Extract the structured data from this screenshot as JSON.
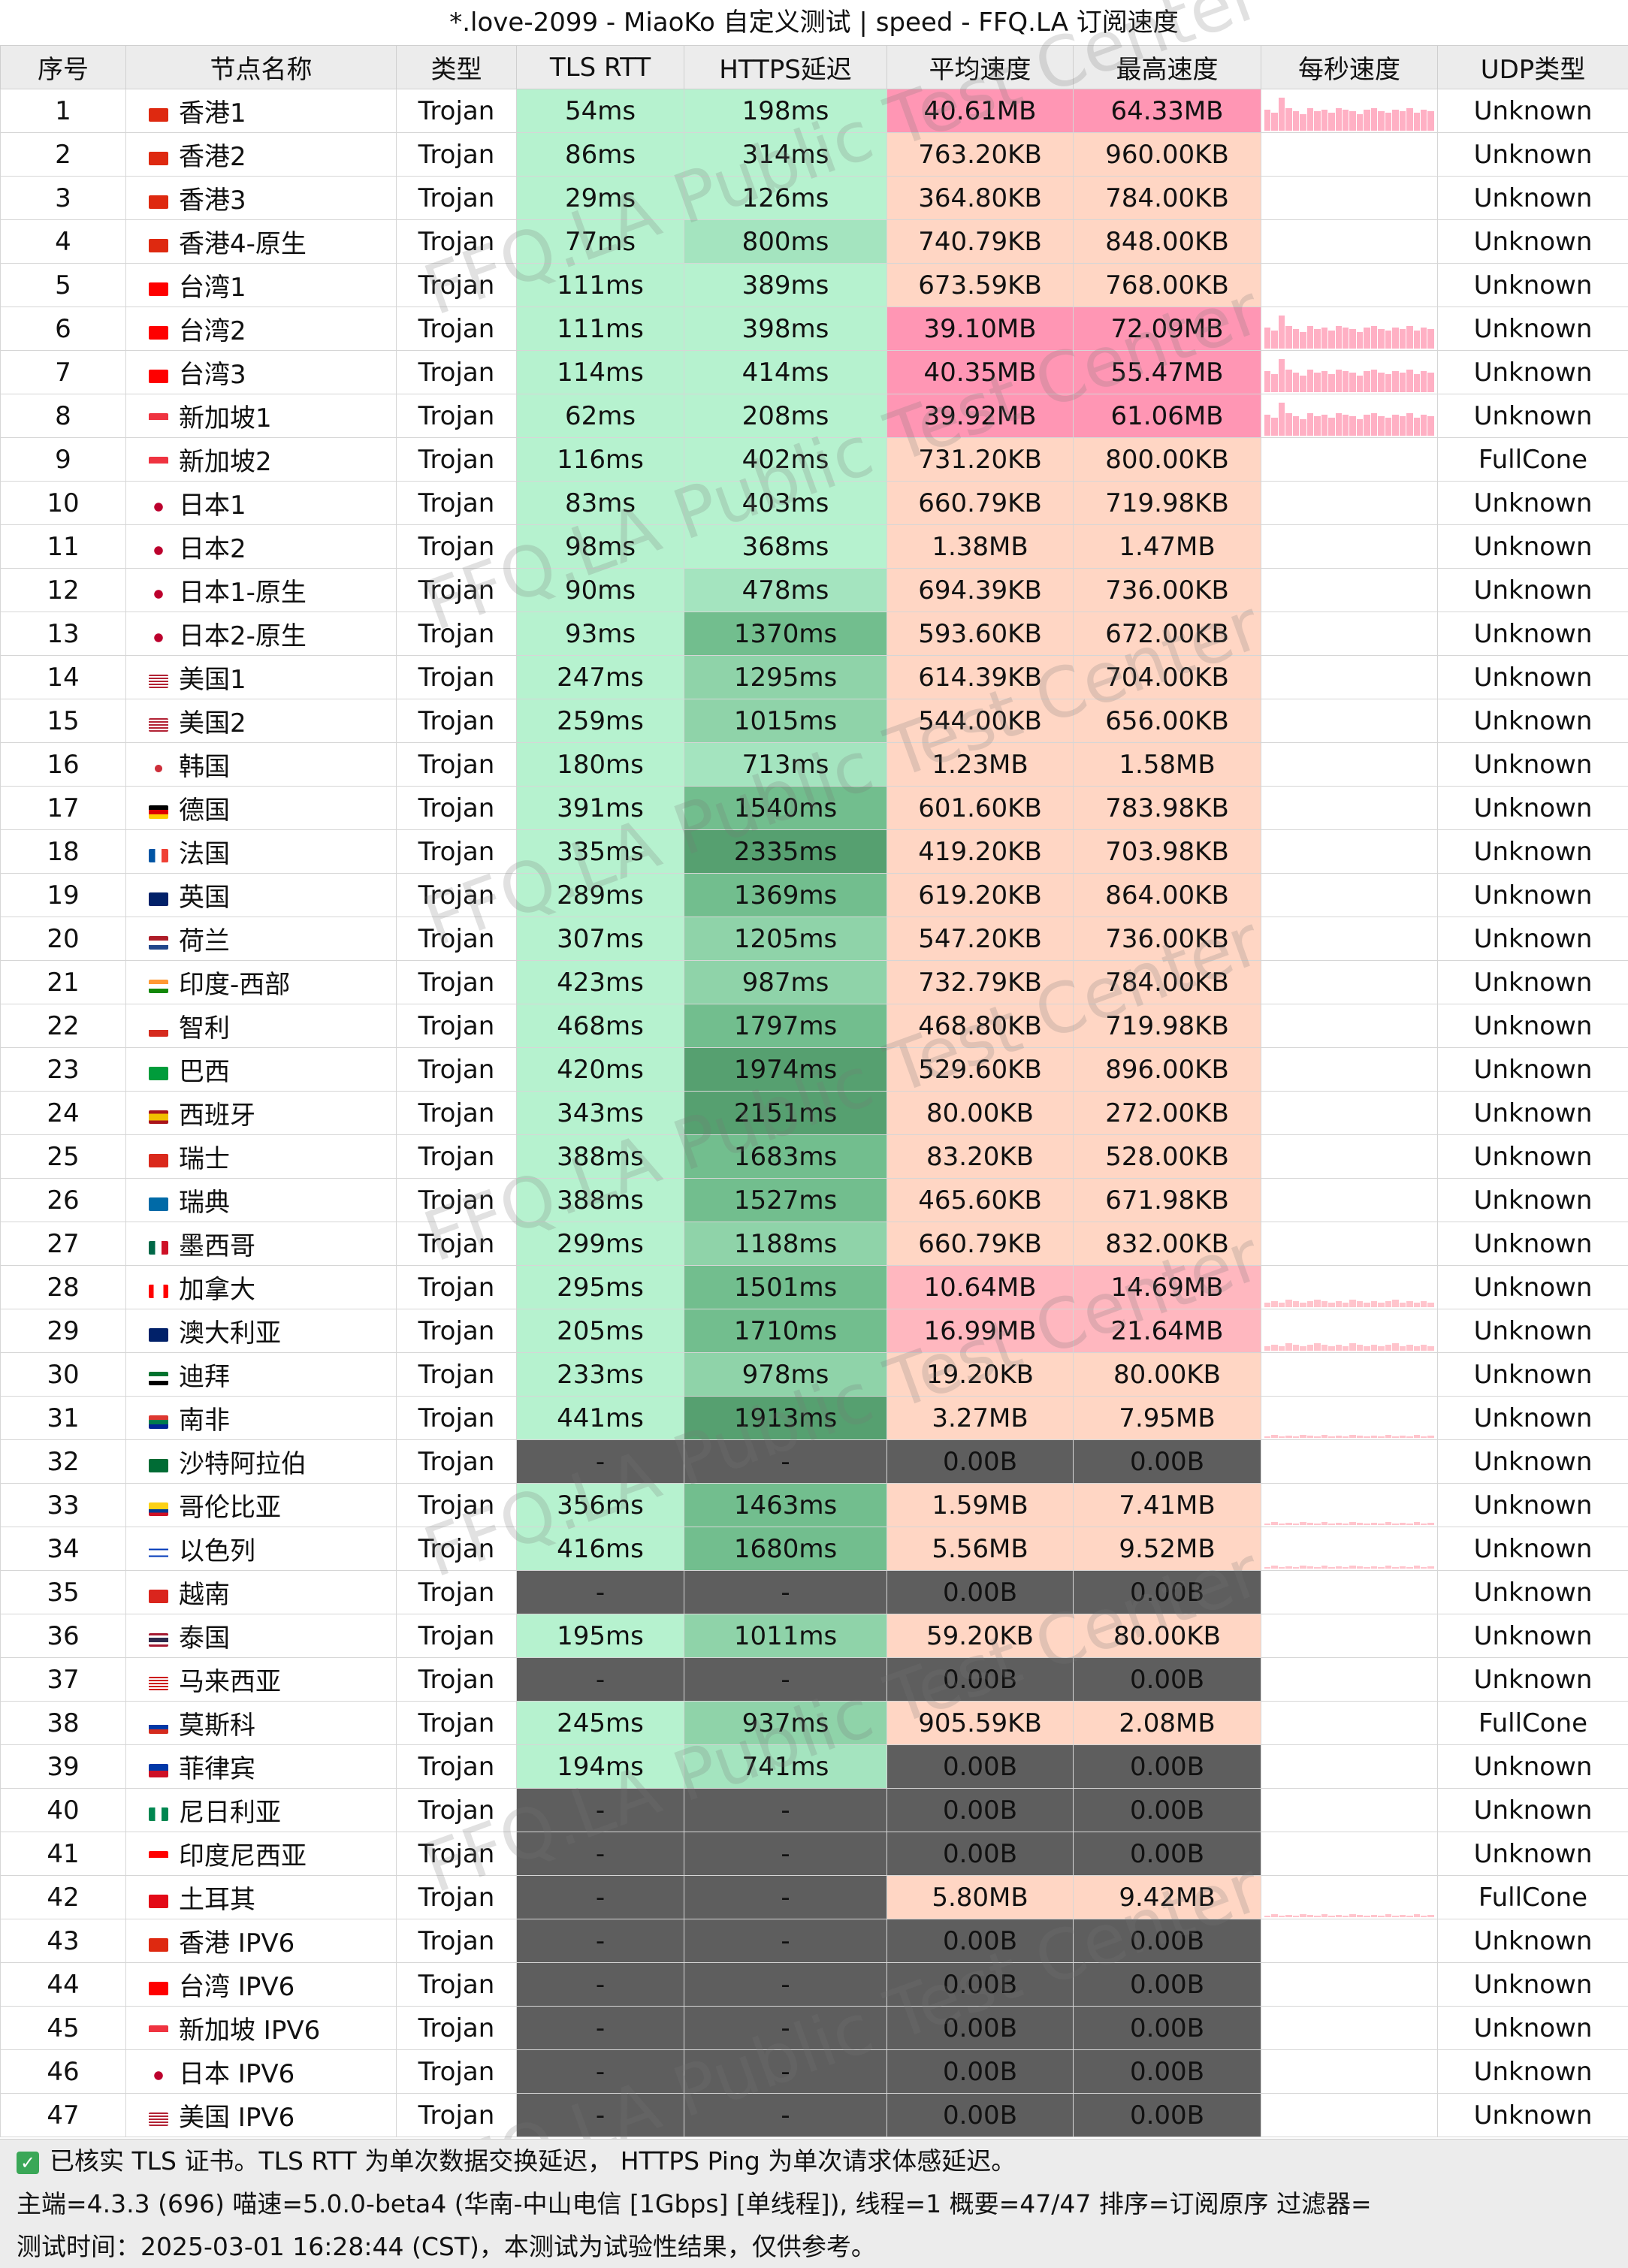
{
  "window": {
    "title": "*.love-2099 - MiaoKo 自定义测试 | speed - FFQ.LA 订阅速度"
  },
  "table": {
    "headers": [
      "序号",
      "节点名称",
      "类型",
      "TLS RTT",
      "HTTPS延迟",
      "平均速度",
      "最高速度",
      "每秒速度",
      "UDP类型"
    ],
    "rows": [
      {
        "idx": "1",
        "name": "香港1",
        "flag": "hk",
        "type": "Trojan",
        "tls": "54ms",
        "https": "198ms",
        "avg": "40.61MB",
        "max": "64.33MB",
        "udp": "Unknown",
        "spark": "high"
      },
      {
        "idx": "2",
        "name": "香港2",
        "flag": "hk",
        "type": "Trojan",
        "tls": "86ms",
        "https": "314ms",
        "avg": "763.20KB",
        "max": "960.00KB",
        "udp": "Unknown",
        "spark": "none"
      },
      {
        "idx": "3",
        "name": "香港3",
        "flag": "hk",
        "type": "Trojan",
        "tls": "29ms",
        "https": "126ms",
        "avg": "364.80KB",
        "max": "784.00KB",
        "udp": "Unknown",
        "spark": "none"
      },
      {
        "idx": "4",
        "name": "香港4-原生",
        "flag": "hk",
        "type": "Trojan",
        "tls": "77ms",
        "https": "800ms",
        "avg": "740.79KB",
        "max": "848.00KB",
        "udp": "Unknown",
        "spark": "none"
      },
      {
        "idx": "5",
        "name": "台湾1",
        "flag": "tw",
        "type": "Trojan",
        "tls": "111ms",
        "https": "389ms",
        "avg": "673.59KB",
        "max": "768.00KB",
        "udp": "Unknown",
        "spark": "none"
      },
      {
        "idx": "6",
        "name": "台湾2",
        "flag": "tw",
        "type": "Trojan",
        "tls": "111ms",
        "https": "398ms",
        "avg": "39.10MB",
        "max": "72.09MB",
        "udp": "Unknown",
        "spark": "high"
      },
      {
        "idx": "7",
        "name": "台湾3",
        "flag": "tw",
        "type": "Trojan",
        "tls": "114ms",
        "https": "414ms",
        "avg": "40.35MB",
        "max": "55.47MB",
        "udp": "Unknown",
        "spark": "high"
      },
      {
        "idx": "8",
        "name": "新加坡1",
        "flag": "sg",
        "type": "Trojan",
        "tls": "62ms",
        "https": "208ms",
        "avg": "39.92MB",
        "max": "61.06MB",
        "udp": "Unknown",
        "spark": "high"
      },
      {
        "idx": "9",
        "name": "新加坡2",
        "flag": "sg",
        "type": "Trojan",
        "tls": "116ms",
        "https": "402ms",
        "avg": "731.20KB",
        "max": "800.00KB",
        "udp": "FullCone",
        "spark": "none"
      },
      {
        "idx": "10",
        "name": "日本1",
        "flag": "jp",
        "type": "Trojan",
        "tls": "83ms",
        "https": "403ms",
        "avg": "660.79KB",
        "max": "719.98KB",
        "udp": "Unknown",
        "spark": "none"
      },
      {
        "idx": "11",
        "name": "日本2",
        "flag": "jp",
        "type": "Trojan",
        "tls": "98ms",
        "https": "368ms",
        "avg": "1.38MB",
        "max": "1.47MB",
        "udp": "Unknown",
        "spark": "none"
      },
      {
        "idx": "12",
        "name": "日本1-原生",
        "flag": "jp",
        "type": "Trojan",
        "tls": "90ms",
        "https": "478ms",
        "avg": "694.39KB",
        "max": "736.00KB",
        "udp": "Unknown",
        "spark": "none"
      },
      {
        "idx": "13",
        "name": "日本2-原生",
        "flag": "jp",
        "type": "Trojan",
        "tls": "93ms",
        "https": "1370ms",
        "avg": "593.60KB",
        "max": "672.00KB",
        "udp": "Unknown",
        "spark": "none"
      },
      {
        "idx": "14",
        "name": "美国1",
        "flag": "us",
        "type": "Trojan",
        "tls": "247ms",
        "https": "1295ms",
        "avg": "614.39KB",
        "max": "704.00KB",
        "udp": "Unknown",
        "spark": "none"
      },
      {
        "idx": "15",
        "name": "美国2",
        "flag": "us",
        "type": "Trojan",
        "tls": "259ms",
        "https": "1015ms",
        "avg": "544.00KB",
        "max": "656.00KB",
        "udp": "Unknown",
        "spark": "none"
      },
      {
        "idx": "16",
        "name": "韩国",
        "flag": "kr",
        "type": "Trojan",
        "tls": "180ms",
        "https": "713ms",
        "avg": "1.23MB",
        "max": "1.58MB",
        "udp": "Unknown",
        "spark": "none"
      },
      {
        "idx": "17",
        "name": "德国",
        "flag": "de",
        "type": "Trojan",
        "tls": "391ms",
        "https": "1540ms",
        "avg": "601.60KB",
        "max": "783.98KB",
        "udp": "Unknown",
        "spark": "none"
      },
      {
        "idx": "18",
        "name": "法国",
        "flag": "fr",
        "type": "Trojan",
        "tls": "335ms",
        "https": "2335ms",
        "avg": "419.20KB",
        "max": "703.98KB",
        "udp": "Unknown",
        "spark": "none"
      },
      {
        "idx": "19",
        "name": "英国",
        "flag": "gb",
        "type": "Trojan",
        "tls": "289ms",
        "https": "1369ms",
        "avg": "619.20KB",
        "max": "864.00KB",
        "udp": "Unknown",
        "spark": "none"
      },
      {
        "idx": "20",
        "name": "荷兰",
        "flag": "nl",
        "type": "Trojan",
        "tls": "307ms",
        "https": "1205ms",
        "avg": "547.20KB",
        "max": "736.00KB",
        "udp": "Unknown",
        "spark": "none"
      },
      {
        "idx": "21",
        "name": "印度-西部",
        "flag": "in",
        "type": "Trojan",
        "tls": "423ms",
        "https": "987ms",
        "avg": "732.79KB",
        "max": "784.00KB",
        "udp": "Unknown",
        "spark": "none"
      },
      {
        "idx": "22",
        "name": "智利",
        "flag": "cl",
        "type": "Trojan",
        "tls": "468ms",
        "https": "1797ms",
        "avg": "468.80KB",
        "max": "719.98KB",
        "udp": "Unknown",
        "spark": "none"
      },
      {
        "idx": "23",
        "name": "巴西",
        "flag": "br",
        "type": "Trojan",
        "tls": "420ms",
        "https": "1974ms",
        "avg": "529.60KB",
        "max": "896.00KB",
        "udp": "Unknown",
        "spark": "none"
      },
      {
        "idx": "24",
        "name": "西班牙",
        "flag": "es",
        "type": "Trojan",
        "tls": "343ms",
        "https": "2151ms",
        "avg": "80.00KB",
        "max": "272.00KB",
        "udp": "Unknown",
        "spark": "none"
      },
      {
        "idx": "25",
        "name": "瑞士",
        "flag": "ch",
        "type": "Trojan",
        "tls": "388ms",
        "https": "1683ms",
        "avg": "83.20KB",
        "max": "528.00KB",
        "udp": "Unknown",
        "spark": "none"
      },
      {
        "idx": "26",
        "name": "瑞典",
        "flag": "se",
        "type": "Trojan",
        "tls": "388ms",
        "https": "1527ms",
        "avg": "465.60KB",
        "max": "671.98KB",
        "udp": "Unknown",
        "spark": "none"
      },
      {
        "idx": "27",
        "name": "墨西哥",
        "flag": "mx",
        "type": "Trojan",
        "tls": "299ms",
        "https": "1188ms",
        "avg": "660.79KB",
        "max": "832.00KB",
        "udp": "Unknown",
        "spark": "none"
      },
      {
        "idx": "28",
        "name": "加拿大",
        "flag": "ca",
        "type": "Trojan",
        "tls": "295ms",
        "https": "1501ms",
        "avg": "10.64MB",
        "max": "14.69MB",
        "udp": "Unknown",
        "spark": "mid"
      },
      {
        "idx": "29",
        "name": "澳大利亚",
        "flag": "au",
        "type": "Trojan",
        "tls": "205ms",
        "https": "1710ms",
        "avg": "16.99MB",
        "max": "21.64MB",
        "udp": "Unknown",
        "spark": "mid"
      },
      {
        "idx": "30",
        "name": "迪拜",
        "flag": "ae",
        "type": "Trojan",
        "tls": "233ms",
        "https": "978ms",
        "avg": "19.20KB",
        "max": "80.00KB",
        "udp": "Unknown",
        "spark": "none"
      },
      {
        "idx": "31",
        "name": "南非",
        "flag": "za",
        "type": "Trojan",
        "tls": "441ms",
        "https": "1913ms",
        "avg": "3.27MB",
        "max": "7.95MB",
        "udp": "Unknown",
        "spark": "low"
      },
      {
        "idx": "32",
        "name": "沙特阿拉伯",
        "flag": "sa",
        "type": "Trojan",
        "tls": "-",
        "https": "-",
        "avg": "0.00B",
        "max": "0.00B",
        "udp": "Unknown",
        "spark": "none"
      },
      {
        "idx": "33",
        "name": "哥伦比亚",
        "flag": "co",
        "type": "Trojan",
        "tls": "356ms",
        "https": "1463ms",
        "avg": "1.59MB",
        "max": "7.41MB",
        "udp": "Unknown",
        "spark": "low"
      },
      {
        "idx": "34",
        "name": "以色列",
        "flag": "il",
        "type": "Trojan",
        "tls": "416ms",
        "https": "1680ms",
        "avg": "5.56MB",
        "max": "9.52MB",
        "udp": "Unknown",
        "spark": "low"
      },
      {
        "idx": "35",
        "name": "越南",
        "flag": "vn",
        "type": "Trojan",
        "tls": "-",
        "https": "-",
        "avg": "0.00B",
        "max": "0.00B",
        "udp": "Unknown",
        "spark": "none"
      },
      {
        "idx": "36",
        "name": "泰国",
        "flag": "th",
        "type": "Trojan",
        "tls": "195ms",
        "https": "1011ms",
        "avg": "59.20KB",
        "max": "80.00KB",
        "udp": "Unknown",
        "spark": "none"
      },
      {
        "idx": "37",
        "name": "马来西亚",
        "flag": "my",
        "type": "Trojan",
        "tls": "-",
        "https": "-",
        "avg": "0.00B",
        "max": "0.00B",
        "udp": "Unknown",
        "spark": "none"
      },
      {
        "idx": "38",
        "name": "莫斯科",
        "flag": "ru",
        "type": "Trojan",
        "tls": "245ms",
        "https": "937ms",
        "avg": "905.59KB",
        "max": "2.08MB",
        "udp": "FullCone",
        "spark": "none"
      },
      {
        "idx": "39",
        "name": "菲律宾",
        "flag": "ph",
        "type": "Trojan",
        "tls": "194ms",
        "https": "741ms",
        "avg": "0.00B",
        "max": "0.00B",
        "udp": "Unknown",
        "spark": "none"
      },
      {
        "idx": "40",
        "name": "尼日利亚",
        "flag": "ng",
        "type": "Trojan",
        "tls": "-",
        "https": "-",
        "avg": "0.00B",
        "max": "0.00B",
        "udp": "Unknown",
        "spark": "none"
      },
      {
        "idx": "41",
        "name": "印度尼西亚",
        "flag": "id",
        "type": "Trojan",
        "tls": "-",
        "https": "-",
        "avg": "0.00B",
        "max": "0.00B",
        "udp": "Unknown",
        "spark": "none"
      },
      {
        "idx": "42",
        "name": "土耳其",
        "flag": "tr",
        "type": "Trojan",
        "tls": "-",
        "https": "-",
        "avg": "5.80MB",
        "max": "9.42MB",
        "udp": "FullCone",
        "spark": "low"
      },
      {
        "idx": "43",
        "name": "香港 IPV6",
        "flag": "hk",
        "type": "Trojan",
        "tls": "-",
        "https": "-",
        "avg": "0.00B",
        "max": "0.00B",
        "udp": "Unknown",
        "spark": "none"
      },
      {
        "idx": "44",
        "name": "台湾 IPV6",
        "flag": "tw",
        "type": "Trojan",
        "tls": "-",
        "https": "-",
        "avg": "0.00B",
        "max": "0.00B",
        "udp": "Unknown",
        "spark": "none"
      },
      {
        "idx": "45",
        "name": "新加坡 IPV6",
        "flag": "sg",
        "type": "Trojan",
        "tls": "-",
        "https": "-",
        "avg": "0.00B",
        "max": "0.00B",
        "udp": "Unknown",
        "spark": "none"
      },
      {
        "idx": "46",
        "name": "日本 IPV6",
        "flag": "jp",
        "type": "Trojan",
        "tls": "-",
        "https": "-",
        "avg": "0.00B",
        "max": "0.00B",
        "udp": "Unknown",
        "spark": "none"
      },
      {
        "idx": "47",
        "name": "美国 IPV6",
        "flag": "us",
        "type": "Trojan",
        "tls": "-",
        "https": "-",
        "avg": "0.00B",
        "max": "0.00B",
        "udp": "Unknown",
        "spark": "none"
      }
    ]
  },
  "footer": {
    "line1": "已核实 TLS 证书。TLS RTT 为单次数据交换延迟， HTTPS Ping 为单次请求体感延迟。",
    "line2": "主端=4.3.3 (696) 喵速=5.0.0-beta4 (华南-中山电信 [1Gbps] [单线程]), 线程=1 概要=47/47 排序=订阅原序 过滤器=",
    "line3": "测试时间：2025-03-01 16:28:44 (CST)，本测试为试验性结果，仅供参考。"
  },
  "watermark": {
    "text": "FFQ.LA Public Test Center"
  },
  "colors": {
    "tls_bg": "#b6f2cf",
    "https_shades": [
      "#b6f2cf",
      "#a4e4bf",
      "#8fd3a9",
      "#72be8e",
      "#56a070"
    ],
    "speed_low": "#ffd6c4",
    "speed_high": "#ff96b4",
    "speed_mid": "#ffb7bf",
    "dead": "#5e5e5e"
  }
}
